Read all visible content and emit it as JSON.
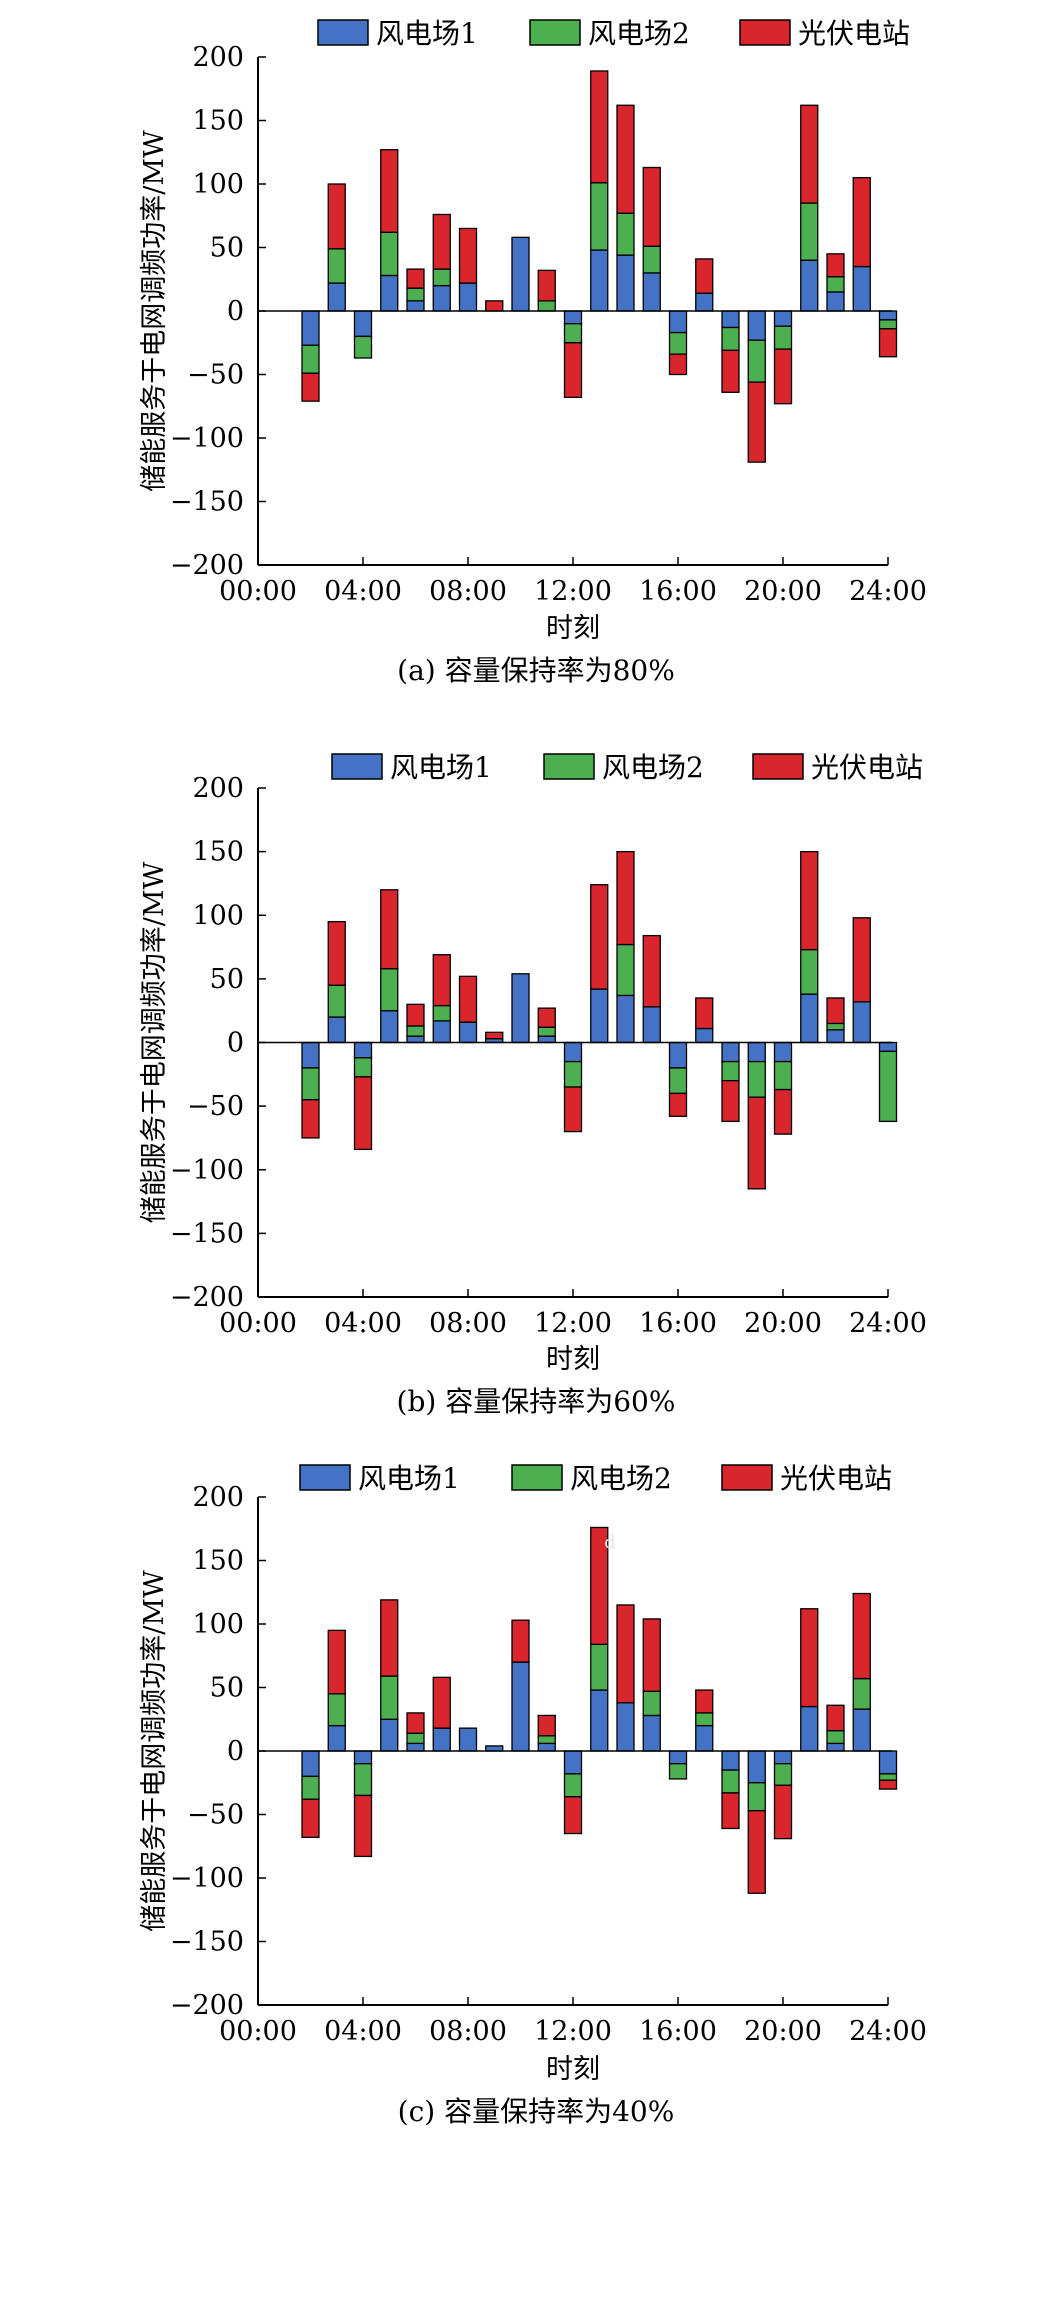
{
  "colors": {
    "wind1": "#4472c4",
    "wind2": "#4caf50",
    "pv": "#d9262c",
    "stroke": "#000000"
  },
  "chart_data": [
    {
      "type": "bar",
      "stacked": true,
      "caption": "(a) 容量保持率为80%",
      "xlabel": "时刻",
      "ylabel": "储能服务于电网调频功率/MW",
      "ylim": [
        -200,
        200
      ],
      "yticks": [
        200,
        150,
        100,
        50,
        0,
        -50,
        -100,
        -150,
        -200
      ],
      "ytick_labels": [
        "200",
        "150",
        "100",
        "50",
        "0",
        "−50",
        "−100",
        "−150",
        "−200"
      ],
      "xticks": [
        "00:00",
        "04:00",
        "08:00",
        "12:00",
        "16:00",
        "20:00",
        "24:00"
      ],
      "x": [
        2,
        3,
        4,
        5,
        6,
        7,
        8,
        9,
        10,
        11,
        12,
        13,
        14,
        15,
        16,
        17,
        18,
        19,
        20,
        21,
        22,
        23,
        24
      ],
      "grid": false,
      "legend": "top",
      "series": [
        {
          "name": "风电场1",
          "values": [
            -27,
            22,
            -20,
            28,
            8,
            20,
            22,
            0,
            58,
            0,
            -10,
            48,
            44,
            30,
            -17,
            14,
            -13,
            -23,
            -12,
            40,
            15,
            35,
            -7
          ]
        },
        {
          "name": "风电场2",
          "values": [
            -22,
            27,
            -17,
            34,
            10,
            13,
            0,
            0,
            0,
            8,
            -15,
            53,
            33,
            21,
            -17,
            0,
            -18,
            -33,
            -18,
            45,
            12,
            0,
            -7
          ]
        },
        {
          "name": "光伏电站",
          "values": [
            -22,
            51,
            0,
            65,
            15,
            43,
            43,
            8,
            0,
            24,
            -43,
            88,
            85,
            62,
            -16,
            27,
            -33,
            -63,
            -43,
            77,
            18,
            70,
            -22
          ]
        }
      ]
    },
    {
      "type": "bar",
      "stacked": true,
      "caption": "(b) 容量保持率为60%",
      "xlabel": "时刻",
      "ylabel": "储能服务于电网调频功率/MW",
      "ylim": [
        -200,
        200
      ],
      "yticks": [
        200,
        150,
        100,
        50,
        0,
        -50,
        -100,
        -150,
        -200
      ],
      "ytick_labels": [
        "200",
        "150",
        "100",
        "50",
        "0",
        "−50",
        "−100",
        "−150",
        "−200"
      ],
      "xticks": [
        "00:00",
        "04:00",
        "08:00",
        "12:00",
        "16:00",
        "20:00",
        "24:00"
      ],
      "x": [
        2,
        3,
        4,
        5,
        6,
        7,
        8,
        9,
        10,
        11,
        12,
        13,
        14,
        15,
        16,
        17,
        18,
        19,
        20,
        21,
        22,
        23,
        24
      ],
      "grid": false,
      "legend": "top",
      "series": [
        {
          "name": "风电场1",
          "values": [
            -20,
            20,
            -12,
            25,
            5,
            17,
            16,
            3,
            54,
            5,
            -15,
            42,
            37,
            28,
            -20,
            11,
            -15,
            -15,
            -15,
            38,
            10,
            32,
            -7
          ]
        },
        {
          "name": "风电场2",
          "values": [
            -25,
            25,
            -15,
            33,
            8,
            12,
            0,
            0,
            0,
            7,
            -20,
            0,
            40,
            0,
            -20,
            0,
            -15,
            -28,
            -22,
            35,
            5,
            0,
            -55
          ]
        },
        {
          "name": "光伏电站",
          "values": [
            -30,
            50,
            -57,
            62,
            17,
            40,
            36,
            5,
            0,
            15,
            -35,
            82,
            73,
            56,
            -18,
            24,
            -32,
            -72,
            -35,
            77,
            20,
            66,
            0
          ]
        }
      ]
    },
    {
      "type": "bar",
      "stacked": true,
      "caption": "(c) 容量保持率为40%",
      "xlabel": "时刻",
      "ylabel": "储能服务于电网调频功率/MW",
      "ylim": [
        -200,
        200
      ],
      "yticks": [
        200,
        150,
        100,
        50,
        0,
        -50,
        -100,
        -150,
        -200
      ],
      "ytick_labels": [
        "200",
        "150",
        "100",
        "50",
        "0",
        "−50",
        "−100",
        "−150",
        "−200"
      ],
      "xticks": [
        "00:00",
        "04:00",
        "08:00",
        "12:00",
        "16:00",
        "20:00",
        "24:00"
      ],
      "x": [
        2,
        3,
        4,
        5,
        6,
        7,
        8,
        9,
        10,
        11,
        12,
        13,
        14,
        15,
        16,
        17,
        18,
        19,
        20,
        21,
        22,
        23,
        24
      ],
      "grid": false,
      "legend": "top",
      "annotation": "d",
      "series": [
        {
          "name": "风电场1",
          "values": [
            -20,
            20,
            -10,
            25,
            6,
            18,
            18,
            4,
            70,
            6,
            -18,
            48,
            38,
            28,
            -10,
            20,
            -15,
            -25,
            -10,
            35,
            6,
            33,
            -18
          ]
        },
        {
          "name": "风电场2",
          "values": [
            -18,
            25,
            -25,
            34,
            8,
            0,
            0,
            0,
            0,
            6,
            -18,
            36,
            0,
            19,
            -12,
            10,
            -18,
            -22,
            -17,
            0,
            10,
            24,
            -5
          ]
        },
        {
          "name": "光伏电站",
          "values": [
            -30,
            50,
            -48,
            60,
            16,
            40,
            0,
            0,
            33,
            16,
            -29,
            92,
            77,
            57,
            0,
            18,
            -28,
            -65,
            -42,
            77,
            20,
            67,
            -7
          ]
        }
      ]
    }
  ]
}
